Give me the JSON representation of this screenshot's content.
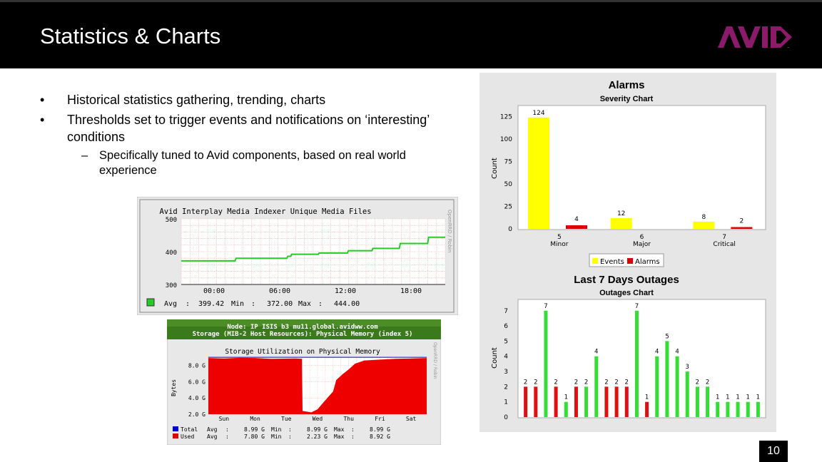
{
  "slide": {
    "title": "Statistics & Charts",
    "bullets": [
      "Historical statistics gathering, trending, charts",
      "Thresholds set to trigger events and notifications on ‘interesting’ conditions"
    ],
    "sub_bullet": "Specifically tuned to Avid components, based on real world experience",
    "bullet_symbol": "•",
    "dash_symbol": "–",
    "page_number": "10",
    "logo_text": "AVID",
    "colors": {
      "header_bg": "#000000",
      "logo": "#8b1a6b"
    }
  },
  "chart_data": [
    {
      "type": "line",
      "title": "Avid Interplay Media Indexer Unique Media Files",
      "side_label": "OpenRRD / Robin",
      "x": [
        "00:00",
        "06:00",
        "12:00",
        "18:00"
      ],
      "ylim": [
        300,
        500
      ],
      "yticks": [
        "500",
        "400",
        "300"
      ],
      "series": [
        {
          "name": "Avg",
          "points": [
            [
              0,
              372
            ],
            [
              5.5,
              372
            ],
            [
              5.6,
              380
            ],
            [
              10.8,
              380
            ],
            [
              10.9,
              386
            ],
            [
              11.2,
              386
            ],
            [
              11.3,
              392
            ],
            [
              14,
              392
            ],
            [
              14.1,
              396
            ],
            [
              17,
              396
            ],
            [
              17.1,
              403
            ],
            [
              19.5,
              403
            ],
            [
              19.6,
              410
            ],
            [
              22.3,
              410
            ],
            [
              22.4,
              425
            ],
            [
              25.2,
              425
            ],
            [
              25.3,
              444
            ],
            [
              27,
              444
            ]
          ]
        }
      ],
      "legend": {
        "name": "Avg",
        "colon": ":",
        "avg": "399.42",
        "min_label": "Min",
        "min": "372.00",
        "max_label": "Max",
        "max": "444.00"
      },
      "colors": {
        "line": "#22cc22",
        "grid": "#f0b0b0",
        "bg": "#ffffff",
        "panel": "#e8e8e8"
      }
    },
    {
      "type": "area",
      "header_line1": "Node: IP ISIS b3  mu11.global.avidww.com",
      "header_line2": "Storage (MIB-2 Host Resources): Physical Memory (index 5)",
      "title": "Storage Utilization on Physical Memory",
      "ylabel": "Bytes",
      "side_label": "OpenRRD / Robin",
      "yticks": [
        "8.0 G",
        "6.0 G",
        "4.0 G",
        "2.0 G"
      ],
      "ylim": [
        2.0,
        9.0
      ],
      "categories": [
        "Sun",
        "Mon",
        "Tue",
        "Wed",
        "Thu",
        "Fri",
        "Sat"
      ],
      "series": [
        {
          "name": "Total",
          "avg": "8.99 G",
          "min": "8.99 G",
          "max": "8.99 G",
          "color": "#0000cc"
        },
        {
          "name": "Used",
          "avg": "7.80 G",
          "min": "2.23 G",
          "max": "8.92 G",
          "color": "#dd0000",
          "points": [
            [
              0,
              8.9
            ],
            [
              0.5,
              8.85
            ],
            [
              1,
              8.92
            ],
            [
              1.5,
              8.9
            ],
            [
              2,
              8.8
            ],
            [
              2.8,
              8.85
            ],
            [
              3,
              8.8
            ],
            [
              3.02,
              2.4
            ],
            [
              3.3,
              2.23
            ],
            [
              3.5,
              2.6
            ],
            [
              3.7,
              3.5
            ],
            [
              4,
              4.8
            ],
            [
              4.1,
              6.2
            ],
            [
              4.3,
              6.9
            ],
            [
              4.5,
              7.5
            ],
            [
              4.7,
              8.2
            ],
            [
              5,
              8.6
            ],
            [
              5.5,
              8.7
            ],
            [
              6,
              8.8
            ],
            [
              6.5,
              8.85
            ],
            [
              7,
              8.9
            ]
          ]
        }
      ],
      "stat_labels": {
        "avg": "Avg",
        "min": "Min",
        "max": "Max",
        "colon": ":"
      },
      "colors": {
        "header_bg": "#3a7a1a",
        "header_text": "#ffffff",
        "area": "#ee0000",
        "bg": "#e8e8e8"
      }
    },
    {
      "type": "bar",
      "heading": "Alarms",
      "title": "Severity Chart",
      "ylabel": "Count",
      "ylim": [
        0,
        135
      ],
      "yticks": [
        0,
        25,
        50,
        75,
        100,
        125
      ],
      "categories": [
        {
          "number": "5",
          "name": "Minor"
        },
        {
          "number": "6",
          "name": "Major"
        },
        {
          "number": "7",
          "name": "Critical"
        }
      ],
      "series": [
        {
          "name": "Events",
          "values": [
            124,
            12,
            8
          ],
          "color": "#ffff00"
        },
        {
          "name": "Alarms",
          "values": [
            4,
            0,
            2
          ],
          "color": "#dd0000"
        }
      ],
      "value_labels": [
        [
          "124",
          "4"
        ],
        [
          "12",
          ""
        ],
        [
          "8",
          "2"
        ]
      ]
    },
    {
      "type": "bar",
      "heading": "Last 7 Days Outages",
      "title": "Outages Chart",
      "ylabel": "Count",
      "ylim": [
        0,
        7.6
      ],
      "yticks": [
        0,
        1,
        2,
        3,
        4,
        5,
        6,
        7
      ],
      "values": [
        2,
        2,
        7,
        2,
        1,
        2,
        2,
        4,
        2,
        2,
        2,
        7,
        1,
        4,
        5,
        4,
        3,
        2,
        2,
        1,
        1,
        1,
        1,
        1
      ],
      "colors_per_bar": [
        "red",
        "red",
        "green",
        "red",
        "green",
        "red",
        "green",
        "green",
        "red",
        "red",
        "red",
        "green",
        "red",
        "green",
        "green",
        "green",
        "green",
        "green",
        "green",
        "green",
        "green",
        "green",
        "green",
        "green"
      ],
      "colors": {
        "red": "#dd1111",
        "green": "#33dd33"
      }
    }
  ]
}
